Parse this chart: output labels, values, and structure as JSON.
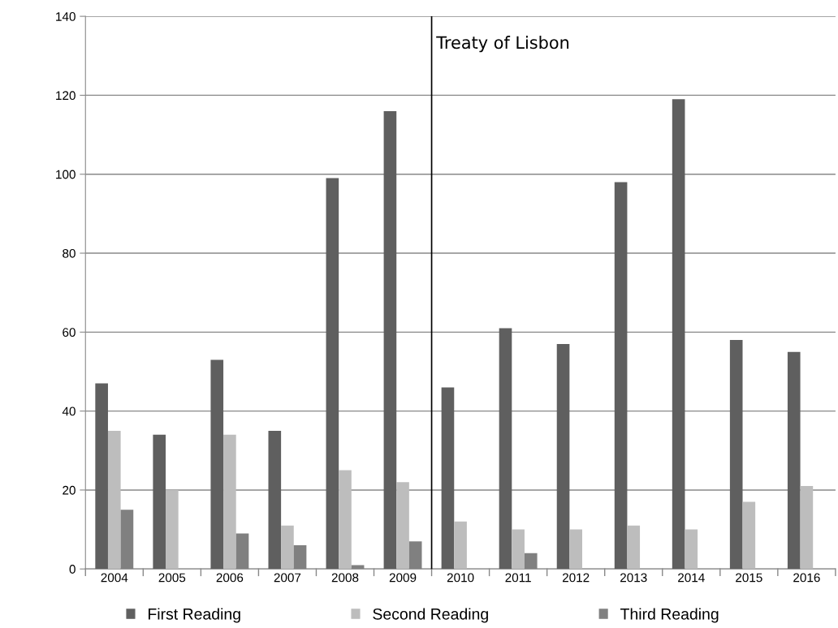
{
  "chart_data": {
    "type": "bar",
    "categories": [
      "2004",
      "2005",
      "2006",
      "2007",
      "2008",
      "2009",
      "2010",
      "2011",
      "2012",
      "2013",
      "2014",
      "2015",
      "2016"
    ],
    "series": [
      {
        "name": "First Reading",
        "color": "#5f5f5f",
        "values": [
          47,
          34,
          53,
          35,
          99,
          116,
          46,
          61,
          57,
          98,
          119,
          58,
          55
        ]
      },
      {
        "name": "Second Reading",
        "color": "#bdbdbd",
        "values": [
          35,
          20,
          34,
          11,
          25,
          22,
          12,
          10,
          10,
          11,
          10,
          17,
          21
        ]
      },
      {
        "name": "Third Reading",
        "color": "#808080",
        "values": [
          15,
          null,
          9,
          6,
          1,
          7,
          null,
          4,
          null,
          null,
          null,
          null,
          null
        ]
      }
    ],
    "ylim": [
      0,
      140
    ],
    "yticks": [
      0,
      20,
      40,
      60,
      80,
      100,
      120,
      140
    ],
    "grid": "y",
    "legend": "bottom",
    "ref_lines": [
      {
        "axis": "x",
        "value": "2010",
        "label": "Treaty of Lisbon",
        "color": "#000000"
      }
    ]
  }
}
